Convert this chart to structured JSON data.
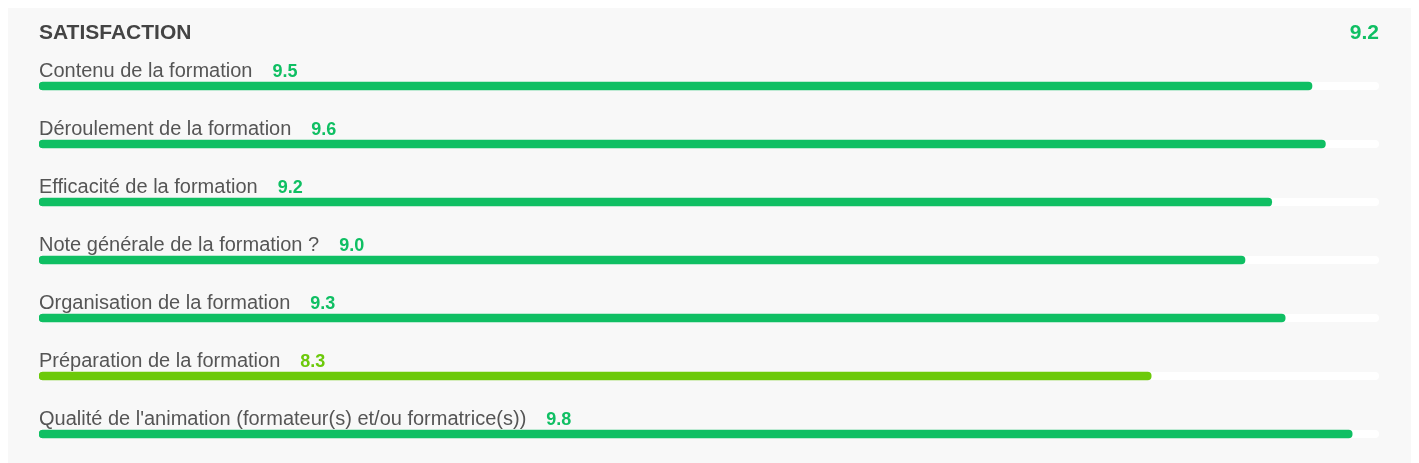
{
  "chart_data": {
    "type": "bar",
    "orientation": "horizontal",
    "title": "SATISFACTION",
    "annotations": [
      "9.2"
    ],
    "categories": [
      "Contenu de la formation",
      "Déroulement de la formation",
      "Efficacité de la formation",
      "Note générale de la formation ?",
      "Organisation de la formation",
      "Préparation de la formation",
      "Qualité de l'animation (formateur(s) et/ou formatrice(s))"
    ],
    "values": [
      9.5,
      9.6,
      9.2,
      9.0,
      9.3,
      8.3,
      9.8
    ],
    "value_labels": [
      "9.5",
      "9.6",
      "9.2",
      "9.0",
      "9.3",
      "8.3",
      "9.8"
    ],
    "colors": [
      "#0fbf63",
      "#0fbf63",
      "#0fbf63",
      "#0fbf63",
      "#0fbf63",
      "#6cc90a",
      "#0fbf63"
    ],
    "xlim": [
      0,
      10
    ]
  }
}
